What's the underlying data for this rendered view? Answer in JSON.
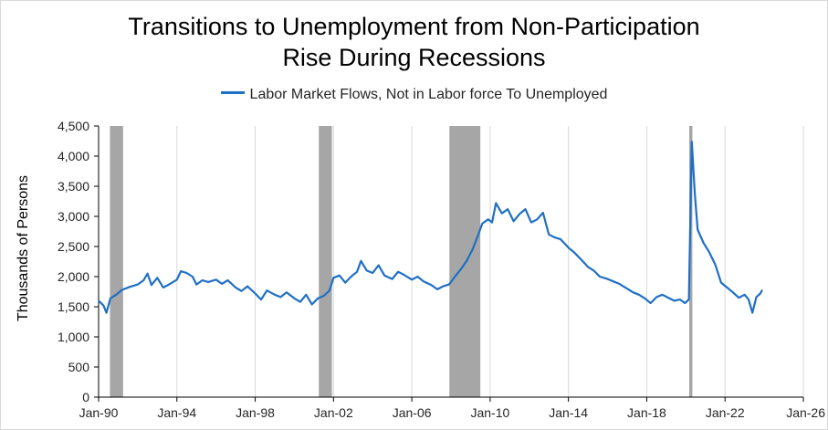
{
  "chart_data": {
    "type": "line",
    "title_lines": [
      "Transitions to Unemployment from Non-Participation",
      "Rise During Recessions"
    ],
    "ylabel": "Thousands of Persons",
    "xlabel": "",
    "ylim": [
      0,
      4500
    ],
    "yticks": [
      0,
      500,
      1000,
      1500,
      2000,
      2500,
      3000,
      3500,
      4000,
      4500
    ],
    "ytick_labels": [
      "0",
      "500",
      "1,000",
      "1,500",
      "2,000",
      "2,500",
      "3,000",
      "3,500",
      "4,000",
      "4,500"
    ],
    "xlim": [
      1990,
      2026
    ],
    "xticks": [
      1990,
      1994,
      1998,
      2002,
      2006,
      2010,
      2014,
      2018,
      2022,
      2026
    ],
    "xtick_labels": [
      "Jan-90",
      "Jan-94",
      "Jan-98",
      "Jan-02",
      "Jan-06",
      "Jan-10",
      "Jan-14",
      "Jan-18",
      "Jan-22",
      "Jan-26"
    ],
    "grid": "vertical",
    "legend_position": "top",
    "recession_color": "#a6a6a6",
    "recessions": [
      [
        1990.58,
        1991.25
      ],
      [
        2001.25,
        2001.92
      ],
      [
        2007.92,
        2009.5
      ],
      [
        2020.17,
        2020.33
      ]
    ],
    "series": [
      {
        "name": "Labor Market Flows, Not in Labor force To Unemployed",
        "color": "#1f6fc5",
        "points": [
          [
            1990.0,
            1600
          ],
          [
            1990.25,
            1520
          ],
          [
            1990.4,
            1400
          ],
          [
            1990.6,
            1640
          ],
          [
            1990.9,
            1700
          ],
          [
            1991.2,
            1780
          ],
          [
            1991.6,
            1830
          ],
          [
            1992.0,
            1870
          ],
          [
            1992.3,
            1940
          ],
          [
            1992.5,
            2050
          ],
          [
            1992.7,
            1860
          ],
          [
            1993.0,
            1980
          ],
          [
            1993.3,
            1820
          ],
          [
            1993.6,
            1870
          ],
          [
            1994.0,
            1950
          ],
          [
            1994.2,
            2090
          ],
          [
            1994.5,
            2060
          ],
          [
            1994.8,
            2000
          ],
          [
            1995.0,
            1870
          ],
          [
            1995.3,
            1940
          ],
          [
            1995.6,
            1910
          ],
          [
            1996.0,
            1950
          ],
          [
            1996.3,
            1880
          ],
          [
            1996.6,
            1940
          ],
          [
            1997.0,
            1820
          ],
          [
            1997.3,
            1760
          ],
          [
            1997.6,
            1840
          ],
          [
            1998.0,
            1720
          ],
          [
            1998.3,
            1620
          ],
          [
            1998.6,
            1770
          ],
          [
            1999.0,
            1700
          ],
          [
            1999.3,
            1660
          ],
          [
            1999.6,
            1740
          ],
          [
            2000.0,
            1640
          ],
          [
            2000.3,
            1580
          ],
          [
            2000.6,
            1700
          ],
          [
            2000.9,
            1540
          ],
          [
            2001.2,
            1640
          ],
          [
            2001.5,
            1680
          ],
          [
            2001.8,
            1770
          ],
          [
            2002.0,
            1980
          ],
          [
            2002.3,
            2020
          ],
          [
            2002.6,
            1900
          ],
          [
            2002.9,
            2000
          ],
          [
            2003.2,
            2080
          ],
          [
            2003.4,
            2260
          ],
          [
            2003.7,
            2100
          ],
          [
            2004.0,
            2060
          ],
          [
            2004.3,
            2190
          ],
          [
            2004.6,
            2020
          ],
          [
            2005.0,
            1960
          ],
          [
            2005.3,
            2080
          ],
          [
            2005.6,
            2030
          ],
          [
            2006.0,
            1950
          ],
          [
            2006.3,
            2000
          ],
          [
            2006.6,
            1920
          ],
          [
            2007.0,
            1860
          ],
          [
            2007.3,
            1790
          ],
          [
            2007.6,
            1840
          ],
          [
            2007.9,
            1870
          ],
          [
            2008.2,
            2000
          ],
          [
            2008.5,
            2120
          ],
          [
            2008.8,
            2260
          ],
          [
            2009.1,
            2450
          ],
          [
            2009.4,
            2700
          ],
          [
            2009.6,
            2880
          ],
          [
            2009.9,
            2950
          ],
          [
            2010.1,
            2900
          ],
          [
            2010.3,
            3220
          ],
          [
            2010.6,
            3050
          ],
          [
            2010.9,
            3120
          ],
          [
            2011.2,
            2920
          ],
          [
            2011.5,
            3040
          ],
          [
            2011.8,
            3120
          ],
          [
            2012.1,
            2900
          ],
          [
            2012.4,
            2950
          ],
          [
            2012.7,
            3060
          ],
          [
            2013.0,
            2700
          ],
          [
            2013.3,
            2650
          ],
          [
            2013.6,
            2620
          ],
          [
            2014.0,
            2480
          ],
          [
            2014.3,
            2400
          ],
          [
            2014.6,
            2300
          ],
          [
            2015.0,
            2160
          ],
          [
            2015.3,
            2100
          ],
          [
            2015.6,
            2000
          ],
          [
            2016.0,
            1960
          ],
          [
            2016.3,
            1920
          ],
          [
            2016.6,
            1880
          ],
          [
            2017.0,
            1800
          ],
          [
            2017.3,
            1740
          ],
          [
            2017.6,
            1700
          ],
          [
            2017.9,
            1640
          ],
          [
            2018.2,
            1560
          ],
          [
            2018.5,
            1660
          ],
          [
            2018.8,
            1700
          ],
          [
            2019.1,
            1650
          ],
          [
            2019.4,
            1600
          ],
          [
            2019.7,
            1620
          ],
          [
            2019.95,
            1560
          ],
          [
            2020.15,
            1620
          ],
          [
            2020.3,
            4240
          ],
          [
            2020.45,
            3400
          ],
          [
            2020.6,
            2780
          ],
          [
            2020.9,
            2560
          ],
          [
            2021.2,
            2400
          ],
          [
            2021.5,
            2200
          ],
          [
            2021.8,
            1900
          ],
          [
            2022.1,
            1820
          ],
          [
            2022.4,
            1740
          ],
          [
            2022.7,
            1650
          ],
          [
            2023.0,
            1700
          ],
          [
            2023.2,
            1620
          ],
          [
            2023.4,
            1400
          ],
          [
            2023.6,
            1660
          ],
          [
            2023.8,
            1720
          ],
          [
            2023.9,
            1780
          ]
        ]
      }
    ]
  }
}
